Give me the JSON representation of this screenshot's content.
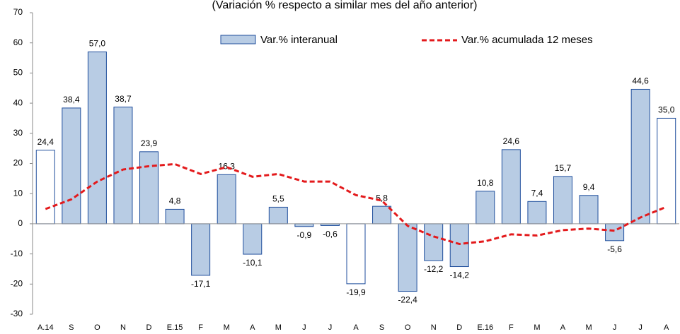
{
  "chart_data": {
    "type": "bar-line",
    "subtitle": "(Variación % respecto a similar mes del año anterior)",
    "categories": [
      "A.14",
      "S",
      "O",
      "N",
      "D",
      "E.15",
      "F",
      "M",
      "A",
      "M",
      "J",
      "J",
      "A",
      "S",
      "O",
      "N",
      "D",
      "E.16",
      "F",
      "M",
      "A",
      "M",
      "J",
      "J",
      "A"
    ],
    "series": [
      {
        "name": "Var.% interanual",
        "color": "#b8cce4",
        "bar_colors": [
          "#ffffff",
          "#b8cce4",
          "#b8cce4",
          "#b8cce4",
          "#b8cce4",
          "#b8cce4",
          "#b8cce4",
          "#b8cce4",
          "#b8cce4",
          "#b8cce4",
          "#b8cce4",
          "#b8cce4",
          "#ffffff",
          "#b8cce4",
          "#b8cce4",
          "#b8cce4",
          "#b8cce4",
          "#b8cce4",
          "#b8cce4",
          "#b8cce4",
          "#b8cce4",
          "#b8cce4",
          "#b8cce4",
          "#b8cce4",
          "#ffffff"
        ],
        "values": [
          24.4,
          38.4,
          57.0,
          38.7,
          23.9,
          4.8,
          -17.1,
          16.3,
          -10.1,
          5.5,
          -0.9,
          -0.6,
          -19.9,
          5.8,
          -22.4,
          -12.2,
          -14.2,
          10.8,
          24.6,
          7.4,
          15.7,
          9.4,
          -5.6,
          44.6,
          35.0
        ],
        "value_labels": [
          "24,4",
          "38,4",
          "57,0",
          "38,7",
          "23,9",
          "4,8",
          "-17,1",
          "16,3",
          "-10,1",
          "5,5",
          "-0,9",
          "-0,6",
          "-19,9",
          "5,8",
          "-22,4",
          "-12,2",
          "-14,2",
          "10,8",
          "24,6",
          "7,4",
          "15,7",
          "9,4",
          "-5,6",
          "44,6",
          "35,0"
        ]
      },
      {
        "name": "Var.% acumulada 12 meses",
        "color": "#e31a1c",
        "line": "dashed",
        "values": [
          4.9,
          8.1,
          14.0,
          18.0,
          19.1,
          19.8,
          16.5,
          18.8,
          15.6,
          16.5,
          14.0,
          14.0,
          9.5,
          7.7,
          -0.7,
          -4.2,
          -6.7,
          -5.8,
          -3.5,
          -3.9,
          -2.1,
          -1.6,
          -2.3,
          2.1,
          5.6
        ]
      }
    ],
    "ylim": [
      -30,
      70
    ],
    "yticks": [
      -30,
      -20,
      -10,
      0,
      10,
      20,
      30,
      40,
      50,
      60,
      70
    ],
    "legend": "top"
  }
}
